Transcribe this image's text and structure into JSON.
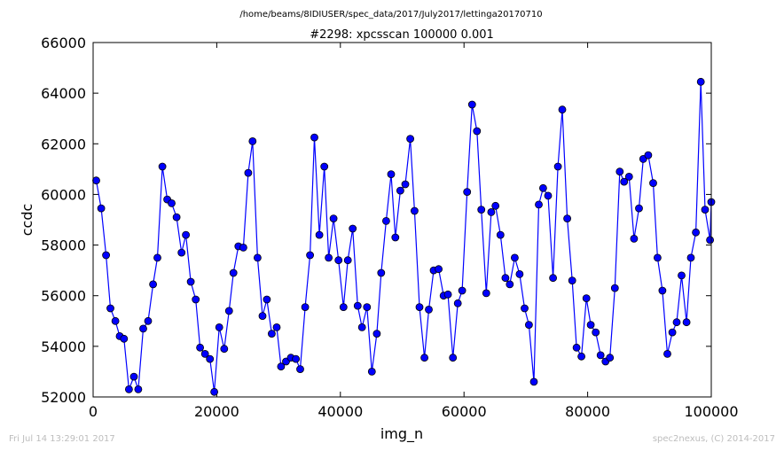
{
  "page": {
    "path_title": "/home/beams/8IDIUSER/spec_data/2017/July2017/lettinga20170710",
    "footer_left": "Fri Jul 14 13:29:01 2017",
    "footer_right": "spec2nexus, (C) 2014-2017"
  },
  "chart_data": {
    "type": "line",
    "title": "#2298: xpcsscan 100000 0.001",
    "xlabel": "img_n",
    "ylabel": "ccdc",
    "xlim": [
      0,
      100000
    ],
    "ylim": [
      52000,
      66000
    ],
    "x_ticks": [
      0,
      20000,
      40000,
      60000,
      80000,
      100000
    ],
    "y_ticks": [
      52000,
      54000,
      56000,
      58000,
      60000,
      62000,
      64000,
      66000
    ],
    "x_tick_labels": [
      "0",
      "20000",
      "40000",
      "60000",
      "80000",
      "100000"
    ],
    "y_tick_labels": [
      "52000",
      "54000",
      "56000",
      "58000",
      "60000",
      "62000",
      "64000",
      "66000"
    ],
    "grid": false,
    "marker": "circle",
    "color": "#0000ff",
    "series": [
      {
        "x": [
          500,
          1300,
          2100,
          2800,
          3600,
          4300,
          5000,
          5800,
          6600,
          7300,
          8100,
          8900,
          9700,
          10400,
          11200,
          12000,
          12700,
          13500,
          14300,
          15000,
          15800,
          16600,
          17300,
          18100,
          18900,
          19600,
          20400,
          21200,
          22000,
          22700,
          23500,
          24300,
          25100,
          25800,
          26600,
          27400,
          28100,
          28900,
          29700,
          30400,
          31200,
          32000,
          32800,
          33500,
          34300,
          35100,
          35800,
          36600,
          37400,
          38100,
          38900,
          39700,
          40500,
          41200,
          42000,
          42800,
          43500,
          44300,
          45100,
          45900,
          46600,
          47400,
          48200,
          48900,
          49700,
          50500,
          51300,
          52000,
          52800,
          53600,
          54300,
          55100,
          55900,
          56700,
          57400,
          58200,
          59000,
          59700,
          60500,
          61300,
          62100,
          62800,
          63600,
          64400,
          65100,
          65900,
          66700,
          67400,
          68200,
          69000,
          69800,
          70500,
          71300,
          72100,
          72800,
          73600,
          74400,
          75200,
          75900,
          76700,
          77500,
          78200,
          79000,
          79800,
          80500,
          81300,
          82100,
          82900,
          83600,
          84400,
          85200,
          85900,
          86700,
          87500,
          88300,
          89000,
          89800,
          90600,
          91300,
          92100,
          92900,
          93700,
          94400,
          95200,
          96000,
          96700,
          97500,
          98300,
          99000,
          99800,
          100000
        ],
        "y": [
          60550,
          59450,
          57600,
          55500,
          55000,
          54400,
          54300,
          52300,
          52800,
          52300,
          54700,
          55000,
          56450,
          57500,
          61100,
          59800,
          59650,
          59100,
          57700,
          58400,
          56550,
          55850,
          53950,
          53700,
          53500,
          52200,
          54750,
          53900,
          55400,
          56900,
          57950,
          57900,
          60850,
          62100,
          57500,
          55200,
          55850,
          54500,
          54750,
          53200,
          53400,
          53550,
          53500,
          53100,
          55550,
          57600,
          62250,
          58400,
          61100,
          57500,
          59050,
          57400,
          55550,
          57400,
          58650,
          55600,
          54750,
          55550,
          53000,
          54500,
          56900,
          58950,
          60800,
          58300,
          60150,
          60400,
          62200,
          59350,
          55550,
          53550,
          55450,
          57000,
          57050,
          56000,
          56050,
          53550,
          55700,
          56200,
          60100,
          63550,
          62500,
          59400,
          56100,
          59300,
          59550,
          58400,
          56700,
          56450,
          57500,
          56850,
          55500,
          54850,
          52600,
          59600,
          60250,
          59950,
          56700,
          61100,
          63350,
          59050,
          56600,
          53950,
          53600,
          55900,
          54850,
          54550,
          53650,
          53400,
          53550,
          56300,
          60900,
          60500,
          60700,
          58250,
          59450,
          61400,
          61550,
          60450,
          57500,
          56200,
          53700,
          54550,
          54950,
          56800,
          54950,
          57500,
          58500,
          64450,
          59400,
          58200,
          59700
        ]
      }
    ]
  }
}
